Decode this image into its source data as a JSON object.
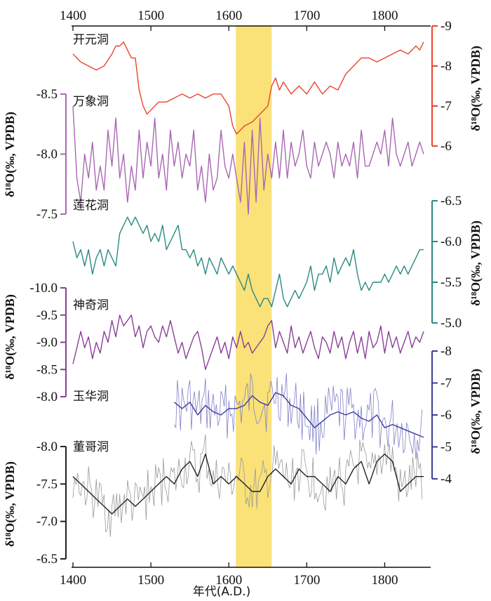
{
  "chart_data": {
    "type": "line",
    "title": "",
    "xlabel": "年代(A.D.)",
    "xlim": [
      1400,
      1850
    ],
    "x_ticks": [
      1400,
      1500,
      1600,
      1700,
      1800
    ],
    "x_tick_labels": [
      "1400",
      "1500",
      "1600",
      "1700",
      "1800"
    ],
    "highlight": {
      "x_start": 1609,
      "x_end": 1655,
      "color": "#f9df6a"
    },
    "series": [
      {
        "name": "开元洞",
        "side": "right",
        "color": "#e8452f",
        "axis_label": "δ¹⁸O(‰, VPDB)",
        "ylim": [
          -6,
          -9
        ],
        "ticks": [
          -9,
          -8,
          -7,
          -6
        ],
        "tick_labels": [
          "-9",
          "-8",
          "-7",
          "-6"
        ],
        "x": [
          1400,
          1410,
          1420,
          1430,
          1440,
          1450,
          1455,
          1460,
          1465,
          1470,
          1475,
          1480,
          1485,
          1490,
          1495,
          1500,
          1510,
          1520,
          1530,
          1540,
          1550,
          1560,
          1570,
          1580,
          1590,
          1600,
          1605,
          1610,
          1620,
          1630,
          1640,
          1650,
          1655,
          1660,
          1665,
          1670,
          1680,
          1690,
          1700,
          1710,
          1720,
          1730,
          1740,
          1750,
          1760,
          1770,
          1780,
          1790,
          1800,
          1810,
          1820,
          1830,
          1840,
          1845,
          1850
        ],
        "values": [
          -8.3,
          -8.1,
          -8.0,
          -7.9,
          -8.0,
          -8.3,
          -8.5,
          -8.5,
          -8.6,
          -8.4,
          -8.2,
          -8.2,
          -7.4,
          -7.0,
          -6.8,
          -6.9,
          -7.1,
          -7.1,
          -7.2,
          -7.3,
          -7.2,
          -7.3,
          -7.2,
          -7.3,
          -7.3,
          -7.0,
          -6.5,
          -6.3,
          -6.5,
          -6.6,
          -6.8,
          -7.0,
          -7.5,
          -7.7,
          -7.4,
          -7.6,
          -7.3,
          -7.5,
          -7.3,
          -7.6,
          -7.3,
          -7.5,
          -7.4,
          -7.8,
          -8.0,
          -8.2,
          -8.2,
          -8.1,
          -8.2,
          -8.3,
          -8.4,
          -8.3,
          -8.5,
          -8.4,
          -8.6
        ]
      },
      {
        "name": "万象洞",
        "side": "left",
        "color": "#a967b3",
        "axis_label": "δ¹⁸O(‰, VPDB)",
        "ylim": [
          -7.5,
          -8.5
        ],
        "ticks": [
          -8.5,
          -8.0,
          -7.5
        ],
        "tick_labels": [
          "-8.5",
          "-8.0",
          "-7.5"
        ],
        "x": [
          1400,
          1405,
          1410,
          1415,
          1420,
          1425,
          1430,
          1435,
          1440,
          1445,
          1450,
          1455,
          1460,
          1465,
          1470,
          1475,
          1480,
          1485,
          1490,
          1495,
          1500,
          1505,
          1510,
          1515,
          1520,
          1525,
          1530,
          1535,
          1540,
          1545,
          1550,
          1555,
          1560,
          1565,
          1570,
          1575,
          1580,
          1585,
          1590,
          1595,
          1600,
          1605,
          1610,
          1615,
          1620,
          1625,
          1630,
          1635,
          1640,
          1645,
          1650,
          1655,
          1660,
          1665,
          1670,
          1675,
          1680,
          1685,
          1690,
          1695,
          1700,
          1705,
          1710,
          1715,
          1720,
          1725,
          1730,
          1735,
          1740,
          1745,
          1750,
          1755,
          1760,
          1765,
          1770,
          1775,
          1780,
          1785,
          1790,
          1795,
          1800,
          1805,
          1810,
          1815,
          1820,
          1825,
          1830,
          1835,
          1840,
          1845,
          1850
        ],
        "values": [
          -8.4,
          -7.8,
          -7.6,
          -8.0,
          -7.8,
          -8.1,
          -7.7,
          -7.9,
          -7.7,
          -8.2,
          -7.9,
          -8.3,
          -7.8,
          -8.0,
          -7.6,
          -7.9,
          -7.7,
          -8.2,
          -7.8,
          -8.1,
          -7.9,
          -8.3,
          -7.8,
          -8.0,
          -7.7,
          -8.2,
          -7.9,
          -8.1,
          -7.8,
          -8.0,
          -7.9,
          -8.2,
          -7.7,
          -7.9,
          -7.6,
          -8.0,
          -7.7,
          -7.8,
          -8.2,
          -7.9,
          -7.8,
          -8.0,
          -7.8,
          -7.6,
          -8.1,
          -7.5,
          -8.2,
          -7.6,
          -8.3,
          -7.7,
          -8.0,
          -7.8,
          -8.1,
          -7.8,
          -8.2,
          -7.8,
          -8.1,
          -7.9,
          -8.0,
          -8.2,
          -7.9,
          -7.8,
          -8.1,
          -7.9,
          -8.0,
          -8.1,
          -8.0,
          -7.8,
          -8.1,
          -7.9,
          -8.0,
          -7.9,
          -8.1,
          -7.8,
          -8.2,
          -7.9,
          -7.9,
          -8.0,
          -8.1,
          -8.0,
          -8.2,
          -7.9,
          -8.3,
          -8.0,
          -7.9,
          -8.0,
          -8.1,
          -7.9,
          -8.0,
          -8.1,
          -8.0
        ]
      },
      {
        "name": "莲花洞",
        "side": "right",
        "color": "#2a8a82",
        "axis_label": "δ¹⁸O(‰, VPDB)",
        "ylim": [
          -5.0,
          -6.5
        ],
        "ticks": [
          -6.5,
          -6.0,
          -5.5,
          -5.0
        ],
        "tick_labels": [
          "-6.5",
          "-6.0",
          "-5.5",
          "-5.0"
        ],
        "x": [
          1400,
          1405,
          1410,
          1415,
          1420,
          1425,
          1430,
          1435,
          1440,
          1445,
          1450,
          1455,
          1460,
          1465,
          1470,
          1475,
          1480,
          1485,
          1490,
          1495,
          1500,
          1505,
          1510,
          1515,
          1520,
          1525,
          1530,
          1535,
          1540,
          1545,
          1550,
          1555,
          1560,
          1565,
          1570,
          1575,
          1580,
          1585,
          1590,
          1595,
          1600,
          1605,
          1610,
          1615,
          1620,
          1625,
          1630,
          1635,
          1640,
          1645,
          1650,
          1655,
          1660,
          1665,
          1670,
          1675,
          1680,
          1685,
          1690,
          1695,
          1700,
          1705,
          1710,
          1715,
          1720,
          1725,
          1730,
          1735,
          1740,
          1745,
          1750,
          1755,
          1760,
          1765,
          1770,
          1775,
          1780,
          1785,
          1790,
          1795,
          1800,
          1805,
          1810,
          1815,
          1820,
          1825,
          1830,
          1835,
          1840,
          1845,
          1850
        ],
        "values": [
          -6.0,
          -5.8,
          -5.9,
          -5.7,
          -5.9,
          -5.6,
          -5.8,
          -5.9,
          -5.7,
          -5.9,
          -5.8,
          -5.7,
          -6.1,
          -6.2,
          -6.3,
          -6.2,
          -6.3,
          -6.2,
          -6.1,
          -6.2,
          -6.0,
          -6.1,
          -6.0,
          -6.2,
          -5.9,
          -6.0,
          -6.1,
          -6.2,
          -5.9,
          -5.9,
          -5.8,
          -5.9,
          -5.7,
          -5.8,
          -5.6,
          -5.8,
          -5.7,
          -5.6,
          -5.8,
          -5.7,
          -5.6,
          -5.7,
          -5.6,
          -5.5,
          -5.4,
          -5.6,
          -5.4,
          -5.3,
          -5.2,
          -5.3,
          -5.3,
          -5.2,
          -5.4,
          -5.6,
          -5.3,
          -5.2,
          -5.3,
          -5.4,
          -5.3,
          -5.4,
          -5.5,
          -5.7,
          -5.4,
          -5.6,
          -5.6,
          -5.7,
          -5.5,
          -5.8,
          -5.6,
          -5.7,
          -5.8,
          -5.7,
          -5.9,
          -5.6,
          -5.4,
          -5.5,
          -5.4,
          -5.5,
          -5.5,
          -5.5,
          -5.6,
          -5.5,
          -5.6,
          -5.7,
          -5.6,
          -5.7,
          -5.6,
          -5.7,
          -5.8,
          -5.9,
          -5.9
        ]
      },
      {
        "name": "神奇洞",
        "side": "left",
        "color": "#8a3f98",
        "axis_label": "δ¹⁸O(‰, VPDB)",
        "ylim": [
          -8.0,
          -10.0
        ],
        "ticks": [
          -10.0,
          -9.5,
          -9.0,
          -8.5,
          -8.0
        ],
        "tick_labels": [
          "-10.0",
          "-9.5",
          "-9.0",
          "-8.5",
          "-8.0"
        ],
        "x": [
          1400,
          1405,
          1410,
          1415,
          1420,
          1425,
          1430,
          1435,
          1440,
          1445,
          1450,
          1455,
          1460,
          1465,
          1470,
          1475,
          1480,
          1485,
          1490,
          1495,
          1500,
          1505,
          1510,
          1515,
          1520,
          1525,
          1530,
          1535,
          1540,
          1545,
          1550,
          1555,
          1560,
          1565,
          1570,
          1575,
          1580,
          1585,
          1590,
          1595,
          1600,
          1605,
          1610,
          1615,
          1620,
          1625,
          1630,
          1635,
          1640,
          1645,
          1650,
          1655,
          1660,
          1665,
          1670,
          1675,
          1680,
          1685,
          1690,
          1695,
          1700,
          1705,
          1710,
          1715,
          1720,
          1725,
          1730,
          1735,
          1740,
          1745,
          1750,
          1755,
          1760,
          1765,
          1770,
          1775,
          1780,
          1785,
          1790,
          1795,
          1800,
          1805,
          1810,
          1815,
          1820,
          1825,
          1830,
          1835,
          1840,
          1845,
          1850
        ],
        "values": [
          -8.6,
          -8.9,
          -9.2,
          -8.9,
          -9.1,
          -8.7,
          -9.0,
          -8.8,
          -9.2,
          -9.0,
          -9.4,
          -9.1,
          -9.5,
          -9.3,
          -9.4,
          -9.5,
          -9.1,
          -9.3,
          -8.9,
          -9.2,
          -9.3,
          -9.1,
          -9.0,
          -9.3,
          -9.1,
          -9.4,
          -9.1,
          -8.8,
          -9.0,
          -8.7,
          -8.9,
          -9.1,
          -9.2,
          -8.9,
          -8.5,
          -8.7,
          -8.9,
          -9.1,
          -8.8,
          -9.0,
          -8.7,
          -9.1,
          -8.9,
          -9.2,
          -8.9,
          -9.0,
          -8.8,
          -8.9,
          -9.0,
          -9.1,
          -9.3,
          -9.4,
          -8.9,
          -9.2,
          -9.0,
          -8.8,
          -9.3,
          -8.9,
          -9.1,
          -8.8,
          -9.0,
          -9.2,
          -8.9,
          -8.7,
          -9.1,
          -9.0,
          -8.8,
          -9.2,
          -8.9,
          -9.1,
          -8.7,
          -9.0,
          -9.2,
          -8.8,
          -9.1,
          -8.7,
          -9.2,
          -8.9,
          -9.0,
          -9.3,
          -8.8,
          -9.2,
          -8.9,
          -9.1,
          -8.8,
          -9.0,
          -9.2,
          -8.9,
          -9.1,
          -9.0,
          -9.2
        ]
      },
      {
        "name": "玉华洞",
        "side": "right",
        "color": "#3d3d9c",
        "raw_color": "#8080c8",
        "axis_label": "δ¹⁸O(‰, VPDB)",
        "ylim": [
          -4,
          -8
        ],
        "ticks": [
          -8,
          -7,
          -6,
          -5,
          -4
        ],
        "tick_labels": [
          "-8",
          "-7",
          "-6",
          "-5",
          "-4"
        ],
        "x": [
          1530,
          1540,
          1550,
          1560,
          1570,
          1580,
          1590,
          1600,
          1610,
          1620,
          1630,
          1640,
          1650,
          1660,
          1670,
          1680,
          1690,
          1700,
          1710,
          1720,
          1730,
          1740,
          1750,
          1760,
          1770,
          1780,
          1790,
          1800,
          1810,
          1820,
          1830,
          1840,
          1850
        ],
        "values": [
          -6.4,
          -6.2,
          -6.4,
          -6.0,
          -6.3,
          -6.1,
          -6.0,
          -6.2,
          -6.2,
          -6.3,
          -6.6,
          -6.4,
          -6.3,
          -6.7,
          -6.6,
          -6.3,
          -6.2,
          -5.9,
          -5.6,
          -5.8,
          -6.0,
          -6.1,
          -6.0,
          -6.1,
          -5.9,
          -5.8,
          -6.0,
          -5.6,
          -5.7,
          -5.6,
          -5.5,
          -5.4,
          -5.3
        ]
      },
      {
        "name": "董哥洞",
        "side": "left",
        "color": "#222222",
        "raw_color": "#9a9a9a",
        "axis_label": "δ¹⁸O(‰, VPDB)",
        "ylim": [
          -6.5,
          -8.0
        ],
        "ticks": [
          -8.0,
          -7.5,
          -7.0,
          -6.5
        ],
        "tick_labels": [
          "-8.0",
          "-7.5",
          "-7.0",
          "-6.5"
        ],
        "x": [
          1400,
          1410,
          1420,
          1430,
          1440,
          1450,
          1460,
          1470,
          1480,
          1490,
          1500,
          1510,
          1520,
          1530,
          1540,
          1550,
          1560,
          1570,
          1580,
          1590,
          1600,
          1610,
          1620,
          1630,
          1640,
          1650,
          1660,
          1670,
          1680,
          1690,
          1700,
          1710,
          1720,
          1730,
          1740,
          1750,
          1760,
          1770,
          1780,
          1790,
          1800,
          1810,
          1820,
          1830,
          1840,
          1850
        ],
        "values": [
          -7.6,
          -7.5,
          -7.4,
          -7.3,
          -7.2,
          -7.1,
          -7.2,
          -7.3,
          -7.2,
          -7.3,
          -7.4,
          -7.5,
          -7.6,
          -7.5,
          -7.7,
          -7.8,
          -7.6,
          -7.9,
          -7.5,
          -7.6,
          -7.5,
          -7.6,
          -7.5,
          -7.4,
          -7.4,
          -7.6,
          -7.7,
          -7.6,
          -7.5,
          -7.7,
          -7.6,
          -7.6,
          -7.5,
          -7.4,
          -7.6,
          -7.5,
          -7.7,
          -7.8,
          -7.5,
          -7.8,
          -7.9,
          -7.8,
          -7.4,
          -7.5,
          -7.6,
          -7.6
        ]
      }
    ]
  }
}
